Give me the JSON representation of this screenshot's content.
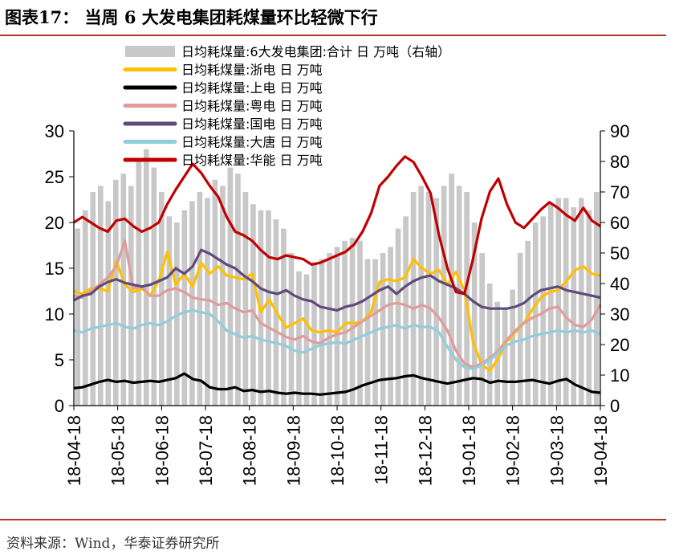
{
  "figure": {
    "title": "图表17：  当周 6 大发电集团耗煤量环比轻微下行",
    "source": "资料来源：Wind，华泰证券研究所"
  },
  "chart_data": {
    "type": "line",
    "secondary_type": "bar",
    "x_tick_labels": [
      "18-04-18",
      "18-05-18",
      "18-06-18",
      "18-07-18",
      "18-08-18",
      "18-09-18",
      "18-10-18",
      "18-11-18",
      "18-12-18",
      "19-01-18",
      "19-02-18",
      "19-03-18",
      "19-04-18"
    ],
    "y_left": {
      "min": 0,
      "max": 30,
      "ticks": [
        0,
        5,
        10,
        15,
        20,
        25,
        30
      ]
    },
    "y_right": {
      "min": 0,
      "max": 90,
      "ticks": [
        0,
        10,
        20,
        30,
        40,
        50,
        60,
        70,
        80,
        90
      ]
    },
    "grid": false,
    "legend_position": "top-center",
    "bar_series": {
      "name": "日均耗煤量:6大发电集团:合计  日  万吨（右轴）",
      "color": "#c8c8c8",
      "values": [
        58,
        64,
        70,
        72,
        67,
        74,
        76,
        72,
        80,
        84,
        78,
        70,
        62,
        60,
        64,
        67,
        70,
        68,
        74,
        72,
        78,
        76,
        70,
        66,
        64,
        64,
        61,
        58,
        50,
        44,
        43,
        47,
        48,
        50,
        52,
        54,
        55,
        54,
        48,
        48,
        50,
        52,
        58,
        62,
        70,
        72,
        70,
        68,
        72,
        76,
        72,
        70,
        60,
        50,
        40,
        34,
        32,
        38,
        50,
        54,
        60,
        62,
        66,
        68,
        68,
        65,
        68,
        64,
        70
      ]
    },
    "line_series": [
      {
        "name": "日均耗煤量:浙电  日  万吨",
        "color": "#ffc000",
        "values": [
          12.5,
          12.2,
          12.8,
          12.8,
          12.5,
          15.8,
          13.2,
          12.4,
          12.8,
          12.0,
          13.6,
          16.8,
          13.2,
          14.4,
          13.0,
          15.6,
          14.4,
          15.2,
          14.2,
          14.0,
          13.8,
          14.4,
          10.2,
          11.6,
          10.0,
          8.5,
          9.0,
          9.5,
          8.2,
          8.0,
          8.2,
          8.0,
          9.0,
          9.0,
          9.2,
          10.2,
          13.5,
          13.8,
          13.6,
          14.0,
          16.0,
          15.0,
          14.4,
          14.8,
          13.2,
          14.6,
          12.6,
          7.0,
          4.5,
          3.8,
          5.2,
          7.0,
          8.0,
          9.0,
          10.5,
          11.8,
          12.4,
          12.6,
          13.6,
          14.8,
          15.2,
          14.4,
          14.2
        ]
      },
      {
        "name": "日均耗煤量:上电  日  万吨",
        "color": "#000000",
        "values": [
          1.9,
          2.0,
          2.3,
          2.6,
          2.8,
          2.6,
          2.7,
          2.5,
          2.6,
          2.7,
          2.6,
          2.8,
          3.0,
          3.5,
          2.9,
          2.7,
          2.0,
          1.8,
          1.8,
          2.0,
          1.6,
          1.7,
          1.5,
          1.6,
          1.4,
          1.3,
          1.4,
          1.3,
          1.3,
          1.2,
          1.3,
          1.4,
          1.5,
          1.8,
          2.2,
          2.5,
          2.8,
          2.9,
          3.0,
          3.2,
          3.3,
          3.0,
          2.8,
          2.6,
          2.4,
          2.6,
          2.8,
          3.0,
          2.9,
          2.5,
          2.7,
          2.6,
          2.6,
          2.7,
          2.8,
          2.6,
          2.4,
          2.7,
          2.9,
          2.3,
          1.9,
          1.5,
          1.4
        ]
      },
      {
        "name": "日均耗煤量:粤电  日  万吨",
        "color": "#e09c9c",
        "values": [
          12.0,
          11.8,
          12.5,
          13.2,
          14.0,
          15.2,
          18.0,
          12.8,
          13.0,
          12.0,
          12.0,
          12.6,
          12.8,
          12.4,
          11.8,
          11.6,
          11.5,
          11.0,
          11.2,
          10.6,
          10.2,
          10.4,
          9.0,
          8.5,
          8.0,
          7.5,
          7.2,
          7.6,
          7.0,
          6.8,
          7.4,
          7.8,
          8.0,
          8.6,
          9.2,
          9.8,
          10.4,
          11.0,
          11.2,
          11.0,
          10.6,
          11.0,
          10.6,
          9.6,
          8.2,
          6.0,
          4.6,
          4.2,
          4.6,
          5.2,
          6.0,
          7.2,
          8.2,
          9.0,
          9.6,
          10.0,
          10.6,
          10.8,
          9.6,
          8.8,
          8.6,
          9.4,
          11.0
        ]
      },
      {
        "name": "日均耗煤量:国电  日  万吨",
        "color": "#604a7b",
        "values": [
          11.5,
          12.0,
          12.2,
          13.0,
          13.5,
          13.8,
          13.4,
          13.2,
          13.0,
          13.2,
          13.6,
          14.0,
          15.0,
          14.4,
          15.2,
          17.0,
          16.6,
          16.0,
          15.4,
          15.0,
          14.2,
          13.6,
          12.8,
          12.4,
          12.2,
          12.6,
          12.0,
          11.6,
          11.4,
          10.8,
          10.6,
          10.4,
          10.8,
          11.0,
          11.4,
          12.0,
          12.6,
          13.0,
          12.2,
          13.0,
          13.6,
          14.0,
          14.2,
          13.6,
          13.2,
          12.8,
          12.2,
          11.4,
          10.8,
          10.6,
          10.6,
          10.6,
          10.8,
          11.2,
          12.0,
          12.6,
          12.8,
          13.0,
          12.6,
          12.4,
          12.2,
          12.0,
          11.8
        ]
      },
      {
        "name": "日均耗煤量:大唐  日  万吨",
        "color": "#92cddc",
        "values": [
          8.2,
          8.0,
          8.4,
          8.6,
          8.8,
          9.0,
          8.6,
          8.4,
          8.8,
          9.0,
          8.8,
          9.2,
          9.8,
          10.2,
          10.4,
          10.2,
          10.0,
          9.2,
          8.2,
          7.8,
          7.4,
          7.6,
          7.2,
          7.0,
          6.8,
          6.5,
          6.0,
          5.8,
          6.2,
          6.6,
          6.8,
          6.9,
          6.8,
          7.2,
          7.6,
          8.0,
          8.4,
          8.6,
          8.8,
          8.4,
          8.8,
          8.6,
          8.6,
          8.0,
          6.4,
          5.0,
          4.2,
          4.0,
          4.4,
          5.0,
          5.8,
          6.6,
          7.0,
          7.2,
          7.6,
          7.8,
          8.0,
          8.2,
          8.0,
          8.2,
          8.0,
          8.2,
          7.8
        ]
      },
      {
        "name": "日均耗煤量:华能  日  万吨",
        "color": "#c00000",
        "values": [
          20.0,
          20.6,
          20.0,
          19.4,
          19.0,
          20.2,
          20.4,
          19.6,
          19.0,
          19.4,
          20.0,
          22.0,
          23.6,
          25.0,
          26.4,
          25.4,
          24.0,
          22.8,
          20.6,
          19.0,
          18.6,
          18.0,
          17.0,
          16.2,
          16.0,
          16.4,
          16.2,
          16.0,
          15.4,
          15.6,
          16.0,
          16.4,
          16.8,
          17.6,
          19.0,
          21.0,
          24.0,
          25.0,
          26.2,
          27.2,
          26.6,
          25.0,
          23.2,
          18.6,
          15.0,
          12.4,
          12.2,
          16.0,
          20.4,
          23.4,
          24.8,
          22.0,
          20.0,
          19.4,
          20.4,
          21.4,
          22.2,
          21.6,
          20.8,
          20.2,
          21.6,
          20.2,
          19.6
        ]
      }
    ]
  }
}
